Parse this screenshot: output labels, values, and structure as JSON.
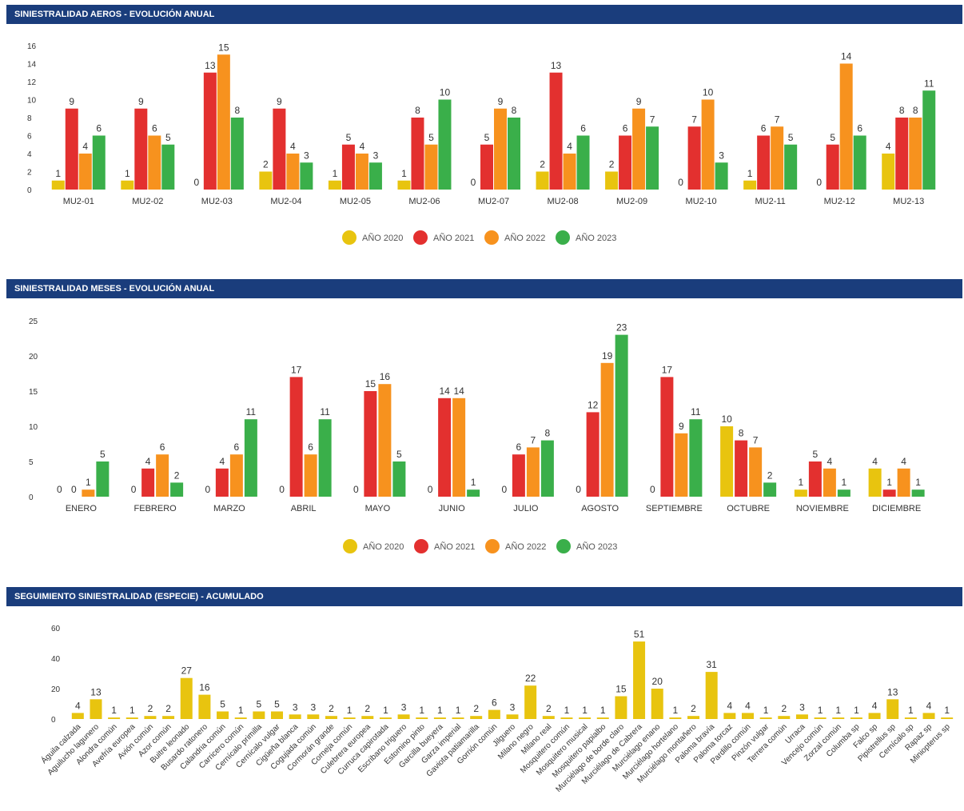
{
  "colors": {
    "y2020": "#e8c40f",
    "y2021": "#e3302f",
    "y2022": "#f7921e",
    "y2023": "#3aaf4a",
    "header": "#1a3d7c"
  },
  "charts": {
    "aeros": {
      "header": "SINIESTRALIDAD AEROS - EVOLUCIÓN ANUAL",
      "chart_data": {
        "type": "bar",
        "categories": [
          "MU2-01",
          "MU2-02",
          "MU2-03",
          "MU2-04",
          "MU2-05",
          "MU2-06",
          "MU2-07",
          "MU2-08",
          "MU2-09",
          "MU2-10",
          "MU2-11",
          "MU2-12",
          "MU2-13"
        ],
        "series": [
          {
            "name": "AÑO 2020",
            "color": "#e8c40f",
            "values": [
              1,
              1,
              0,
              2,
              1,
              1,
              0,
              2,
              2,
              0,
              1,
              0,
              4
            ]
          },
          {
            "name": "AÑO 2021",
            "color": "#e3302f",
            "values": [
              9,
              9,
              13,
              9,
              5,
              8,
              5,
              13,
              6,
              7,
              6,
              5,
              8
            ]
          },
          {
            "name": "AÑO 2022",
            "color": "#f7921e",
            "values": [
              4,
              6,
              15,
              4,
              4,
              5,
              9,
              4,
              9,
              10,
              7,
              14,
              8
            ]
          },
          {
            "name": "AÑO 2023",
            "color": "#3aaf4a",
            "values": [
              6,
              5,
              8,
              3,
              3,
              10,
              8,
              6,
              7,
              3,
              5,
              6,
              11
            ]
          }
        ],
        "yticks": [
          "0",
          "2",
          "4",
          "6",
          "8",
          "10",
          "12",
          "14",
          "16"
        ],
        "ylim": [
          0,
          16
        ],
        "legend": "bottom-center"
      }
    },
    "meses": {
      "header": "SINIESTRALIDAD MESES - EVOLUCIÓN ANUAL",
      "chart_data": {
        "type": "bar",
        "categories": [
          "ENERO",
          "FEBRERO",
          "MARZO",
          "ABRIL",
          "MAYO",
          "JUNIO",
          "JULIO",
          "AGOSTO",
          "SEPTIEMBRE",
          "OCTUBRE",
          "NOVIEMBRE",
          "DICIEMBRE"
        ],
        "series": [
          {
            "name": "AÑO 2020",
            "color": "#e8c40f",
            "values": [
              0,
              0,
              0,
              0,
              0,
              0,
              0,
              0,
              0,
              10,
              1,
              4
            ]
          },
          {
            "name": "AÑO 2021",
            "color": "#e3302f",
            "values": [
              0,
              4,
              4,
              17,
              15,
              14,
              6,
              12,
              17,
              8,
              5,
              1
            ]
          },
          {
            "name": "AÑO 2022",
            "color": "#f7921e",
            "values": [
              1,
              6,
              6,
              6,
              16,
              14,
              7,
              19,
              9,
              7,
              4,
              4
            ]
          },
          {
            "name": "AÑO 2023",
            "color": "#3aaf4a",
            "values": [
              5,
              2,
              11,
              11,
              5,
              1,
              8,
              23,
              11,
              2,
              1,
              1
            ]
          }
        ],
        "yticks": [
          "0",
          "5",
          "10",
          "15",
          "20",
          "25"
        ],
        "ylim": [
          0,
          25
        ],
        "legend": "bottom-center"
      }
    },
    "especie": {
      "header": "SEGUIMIENTO SINIESTRALIDAD (ESPECIE) - ACUMULADO",
      "chart_data": {
        "type": "bar",
        "categories": [
          "Águila calzada",
          "Aguilucho lagunero",
          "Alondra común",
          "Avefría europea",
          "Avión común",
          "Azor común",
          "Buitre leonado",
          "Busardo ratonero",
          "Calandria común",
          "Carricero común",
          "Cernícalo primilla",
          "Cernícalo vulgar",
          "Cigüeña blanca",
          "Cogujada común",
          "Cormorán grande",
          "Corneja común",
          "Culebrera europea",
          "Curruca capirotada",
          "Escribano triguero",
          "Estornino pinto",
          "Garcilla bueyera",
          "Garza imperial",
          "Gaviota patiamarilla",
          "Gorrión común",
          "Jilguero",
          "Milano negro",
          "Milano real",
          "Mosquitero común",
          "Mosquitero musical",
          "Mosquitero papialbo",
          "Murciélago de borde claro",
          "Murciélago de Cabrera",
          "Murciélago enano",
          "Murciélago hortelano",
          "Murciélago montañero",
          "Paloma bravía",
          "Paloma torcaz",
          "Pardillo común",
          "Pinzón vulgar",
          "Terrera común",
          "Urraca",
          "Vencejo común",
          "Zorzal común",
          "Columba sp",
          "Falco sp",
          "Pipistrellus sp",
          "Cernícalo sp",
          "Rapaz sp",
          "Miniopterus sp"
        ],
        "series": [
          {
            "name": "",
            "color": "#e8c40f",
            "values": [
              4,
              13,
              1,
              1,
              2,
              2,
              27,
              16,
              5,
              1,
              5,
              5,
              3,
              3,
              2,
              1,
              2,
              1,
              3,
              1,
              1,
              1,
              2,
              6,
              3,
              22,
              2,
              1,
              1,
              1,
              15,
              51,
              20,
              1,
              2,
              31,
              4,
              4,
              1,
              2,
              3,
              1,
              1,
              1,
              4,
              13,
              1,
              4,
              1
            ]
          }
        ],
        "yticks": [
          "0",
          "20",
          "40",
          "60"
        ],
        "ylim": [
          0,
          60
        ]
      }
    }
  }
}
